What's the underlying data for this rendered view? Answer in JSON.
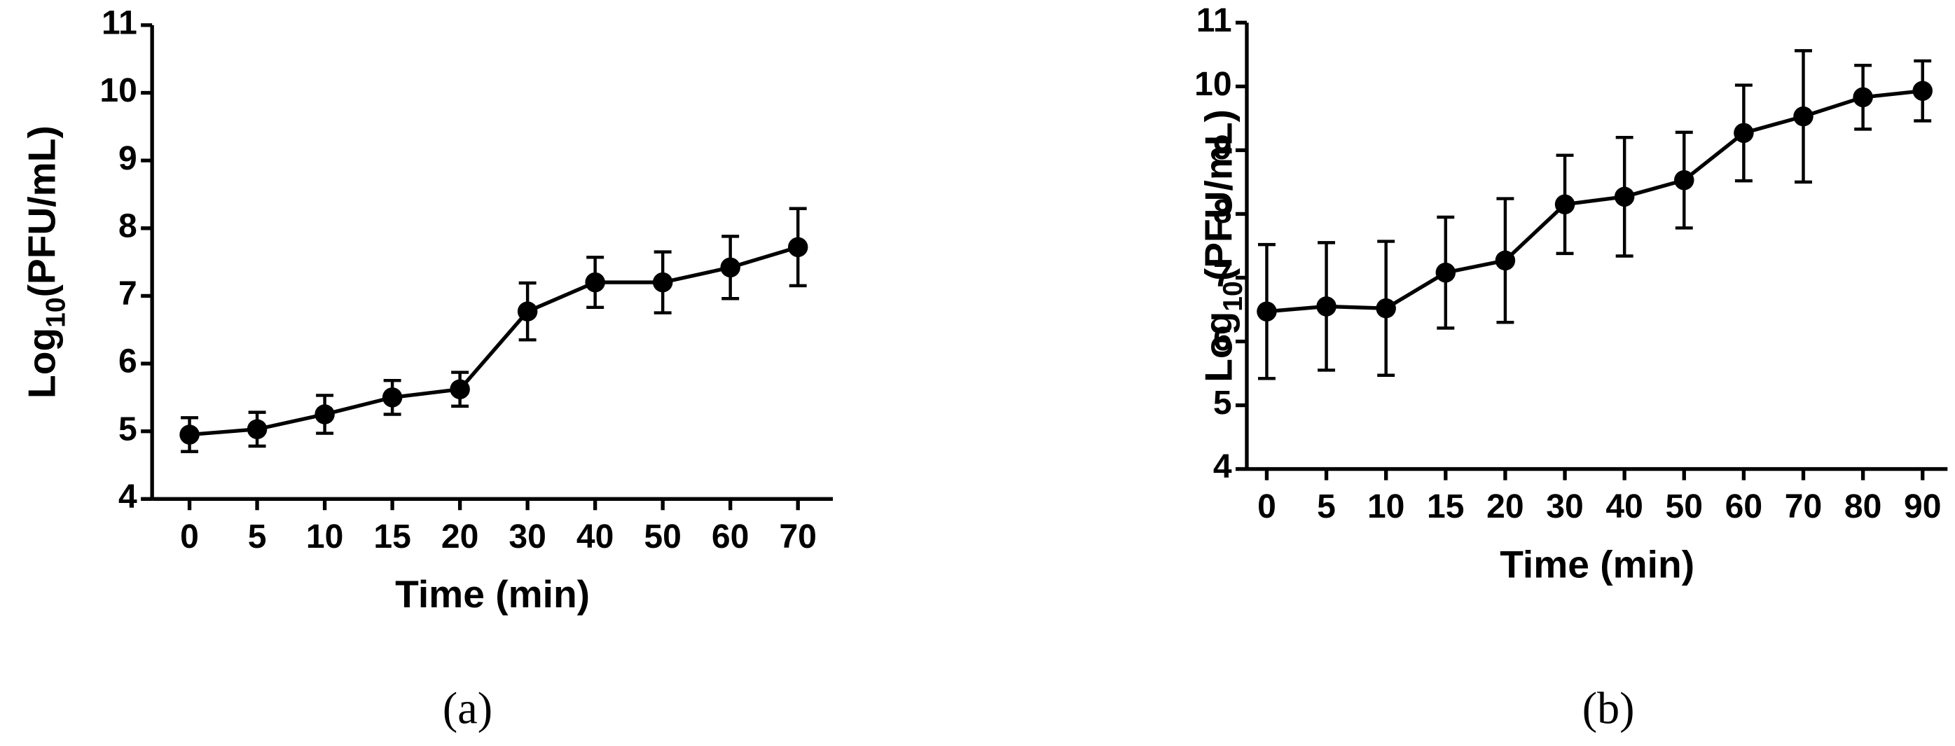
{
  "chart_data": [
    {
      "type": "line",
      "panel_label": "(a)",
      "xlabel": "Time (min)",
      "ylabel": {
        "base": "Log",
        "subscript": "10",
        "unit": "(PFU/mL)"
      },
      "categories": [
        "0",
        "5",
        "10",
        "15",
        "20",
        "30",
        "40",
        "50",
        "60",
        "70"
      ],
      "values": [
        4.95,
        5.03,
        5.25,
        5.5,
        5.62,
        6.77,
        7.2,
        7.2,
        7.42,
        7.72
      ],
      "errors": [
        0.25,
        0.25,
        0.28,
        0.25,
        0.25,
        0.42,
        0.37,
        0.45,
        0.46,
        0.57
      ],
      "color": "#000000",
      "ylim": [
        4,
        11
      ],
      "yticks": [
        4,
        5,
        6,
        7,
        8,
        9,
        10,
        11
      ]
    },
    {
      "type": "line",
      "panel_label": "(b)",
      "xlabel": "Time (min)",
      "ylabel": {
        "base": "Log",
        "subscript": "10",
        "unit": "(PFU/mL)"
      },
      "categories": [
        "0",
        "5",
        "10",
        "15",
        "20",
        "30",
        "40",
        "50",
        "60",
        "70",
        "80",
        "90"
      ],
      "values": [
        6.47,
        6.55,
        6.52,
        7.08,
        7.27,
        8.15,
        8.27,
        8.53,
        9.27,
        9.53,
        9.83,
        9.93
      ],
      "errors": [
        1.05,
        1.0,
        1.05,
        0.87,
        0.97,
        0.77,
        0.93,
        0.75,
        0.75,
        1.03,
        0.5,
        0.47
      ],
      "color": "#000000",
      "ylim": [
        4,
        11
      ],
      "yticks": [
        4,
        5,
        6,
        7,
        8,
        9,
        10,
        11
      ]
    }
  ]
}
